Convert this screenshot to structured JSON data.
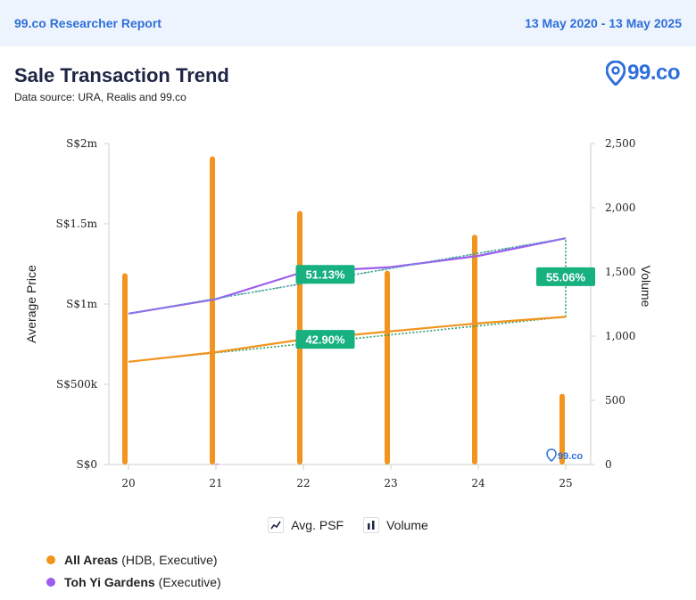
{
  "header": {
    "report_name": "99.co Researcher Report",
    "date_range": "13 May 2020 - 13 May 2025"
  },
  "title": "Sale Transaction Trend",
  "data_source": "Data source: URA, Realis and 99.co",
  "logo": {
    "text": "99.co",
    "icon": "location-pin-icon",
    "color": "#2e6fda"
  },
  "toggles": [
    {
      "label": "Avg. PSF",
      "icon": "line-chart-icon"
    },
    {
      "label": "Volume",
      "icon": "bar-chart-icon"
    }
  ],
  "legend": [
    {
      "name": "All Areas",
      "detail": "(HDB, Executive)",
      "color": "#f2941e"
    },
    {
      "name": "Toh Yi Gardens",
      "detail": "(Executive)",
      "color": "#9c5cf0"
    }
  ],
  "chart_data": {
    "type": "bar",
    "x": [
      "20",
      "21",
      "22",
      "23",
      "24",
      "25"
    ],
    "ylabel": "Average Price",
    "y2label": "Volume",
    "left_ticks": [
      "S$0",
      "S$500k",
      "S$1m",
      "S$1.5m",
      "S$2m"
    ],
    "left_tick_values": [
      0,
      500000,
      1000000,
      1500000,
      2000000
    ],
    "right_ticks": [
      "0",
      "500",
      "1,000",
      "1,500",
      "2,000",
      "2,500"
    ],
    "right_tick_values": [
      0,
      500,
      1000,
      1500,
      2000,
      2500
    ],
    "ylim": [
      0,
      2000000
    ],
    "y2lim": [
      0,
      2500
    ],
    "series": [
      {
        "name": "All Areas",
        "kind": "volume",
        "axis": "right",
        "color": "#f2941e",
        "values": [
          1490,
          2400,
          1975,
          1510,
          1790,
          550
        ]
      },
      {
        "name": "Toh Yi Gardens",
        "kind": "volume",
        "axis": "right",
        "color": "#9c5cf0",
        "values": [
          0,
          5,
          0,
          0,
          0,
          0
        ]
      },
      {
        "name": "All Areas",
        "kind": "price",
        "axis": "left",
        "color": "#f2941e",
        "values": [
          640000,
          700000,
          780000,
          830000,
          880000,
          920000
        ]
      },
      {
        "name": "Toh Yi Gardens",
        "kind": "price",
        "axis": "left",
        "color": "#9c5cf0",
        "values": [
          940000,
          1030000,
          1200000,
          1230000,
          1300000,
          1410000
        ]
      }
    ],
    "trendlines": [
      {
        "color": "#2e9e64",
        "from": [
          0,
          640000
        ],
        "to": [
          5,
          920000
        ]
      },
      {
        "color": "#2e9e64",
        "from": [
          0,
          940000
        ],
        "to": [
          5,
          1410000
        ]
      }
    ],
    "annotations": [
      {
        "text": "51.13%",
        "x": 2.25,
        "y": 1185000
      },
      {
        "text": "42.90%",
        "x": 2.25,
        "y": 780000
      },
      {
        "text": "55.06%",
        "x": 5.0,
        "y": 1170000
      }
    ],
    "annotation_color": "#17b07f",
    "watermark": "99.co"
  }
}
